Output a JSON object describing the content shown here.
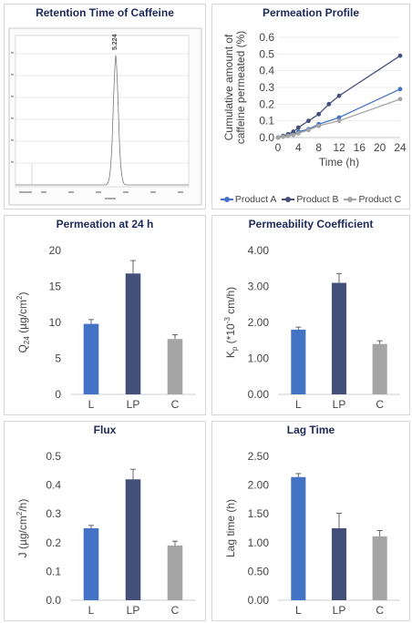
{
  "chromatogram": {
    "title": "Retention Time of Caffeine",
    "peak_label": "5.224",
    "peak_rt": 5.224
  },
  "chart_data": [
    {
      "id": "permeation_profile",
      "type": "line",
      "title": "Permeation Profile",
      "xlabel": "Time (h)",
      "ylabel": "Cumulative amount of caffeine permeated (%)",
      "ylabel_lines": [
        "Cumulative amount of",
        "caffeine permeated (%)"
      ],
      "xlim": [
        0,
        24
      ],
      "ylim": [
        0,
        0.6
      ],
      "xticks": [
        0,
        4,
        8,
        12,
        16,
        20,
        24
      ],
      "yticks": [
        0,
        0.1,
        0.2,
        0.3,
        0.4,
        0.5,
        0.6
      ],
      "ytick_labels": [
        "0.0",
        "0.1",
        "0.2",
        "0.3",
        "0.4",
        "0.5",
        "0.6"
      ],
      "legend_position": "bottom",
      "series": [
        {
          "name": "Product A",
          "color": "#4472c4",
          "x": [
            0,
            1,
            2,
            3,
            4,
            6,
            8,
            12,
            24
          ],
          "y": [
            0,
            0.005,
            0.01,
            0.02,
            0.035,
            0.05,
            0.08,
            0.12,
            0.29
          ]
        },
        {
          "name": "Product B",
          "color": "#44507a",
          "x": [
            0,
            1,
            2,
            3,
            4,
            6,
            8,
            10,
            12,
            24
          ],
          "y": [
            0,
            0.01,
            0.02,
            0.035,
            0.06,
            0.1,
            0.14,
            0.2,
            0.25,
            0.49
          ]
        },
        {
          "name": "Product C",
          "color": "#a5a5a5",
          "x": [
            0,
            1,
            2,
            3,
            4,
            6,
            8,
            12,
            24
          ],
          "y": [
            0,
            0.005,
            0.01,
            0.015,
            0.025,
            0.045,
            0.07,
            0.1,
            0.23
          ]
        }
      ]
    },
    {
      "id": "permeation_24h",
      "type": "bar",
      "title": "Permeation at 24 h",
      "ylabel": "Q24 (µg/cm2)",
      "ylabel_parts": {
        "main": "Q",
        "sub": "24",
        "rest": " (µg/cm",
        "sup": "2",
        "end": ")"
      },
      "categories": [
        "L",
        "LP",
        "C"
      ],
      "values": [
        9.8,
        16.8,
        7.7
      ],
      "errors": [
        0.6,
        1.8,
        0.6
      ],
      "colors": [
        "#4472c4",
        "#44507a",
        "#a5a5a5"
      ],
      "ylim": [
        0,
        20
      ],
      "yticks": [
        0,
        5,
        10,
        15,
        20
      ],
      "ytick_labels": [
        "0",
        "5",
        "10",
        "15",
        "20"
      ]
    },
    {
      "id": "permeability_coefficient",
      "type": "bar",
      "title": "Permeability Coefficient",
      "ylabel": "Kp (*10-3 cm/h)",
      "ylabel_parts": {
        "main": "K",
        "sub": "p",
        "rest": " (*10",
        "sup": "-3",
        "end": " cm/h)"
      },
      "categories": [
        "L",
        "LP",
        "C"
      ],
      "values": [
        1.8,
        3.1,
        1.4
      ],
      "errors": [
        0.07,
        0.26,
        0.09
      ],
      "colors": [
        "#4472c4",
        "#44507a",
        "#a5a5a5"
      ],
      "ylim": [
        0,
        4
      ],
      "yticks": [
        0,
        1,
        2,
        3,
        4
      ],
      "ytick_labels": [
        "0.00",
        "1.00",
        "2.00",
        "3.00",
        "4.00"
      ]
    },
    {
      "id": "flux",
      "type": "bar",
      "title": "Flux",
      "ylabel": "J (µg/cm2/h)",
      "ylabel_parts": {
        "main": "J (µg/cm",
        "sub": "",
        "rest": "",
        "sup": "2",
        "end": "/h)"
      },
      "categories": [
        "L",
        "LP",
        "C"
      ],
      "values": [
        0.25,
        0.42,
        0.19
      ],
      "errors": [
        0.01,
        0.035,
        0.015
      ],
      "colors": [
        "#4472c4",
        "#44507a",
        "#a5a5a5"
      ],
      "ylim": [
        0,
        0.5
      ],
      "yticks": [
        0,
        0.1,
        0.2,
        0.3,
        0.4,
        0.5
      ],
      "ytick_labels": [
        "0.0",
        "0.1",
        "0.2",
        "0.3",
        "0.4",
        "0.5"
      ]
    },
    {
      "id": "lag_time",
      "type": "bar",
      "title": "Lag Time",
      "ylabel": "Lag time (h)",
      "ylabel_parts": {
        "main": "Lag time (h)",
        "sub": "",
        "rest": "",
        "sup": "",
        "end": ""
      },
      "categories": [
        "L",
        "LP",
        "C"
      ],
      "values": [
        2.14,
        1.25,
        1.11
      ],
      "errors": [
        0.06,
        0.26,
        0.1
      ],
      "colors": [
        "#4472c4",
        "#44507a",
        "#a5a5a5"
      ],
      "ylim": [
        0,
        2.5
      ],
      "yticks": [
        0,
        0.5,
        1,
        1.5,
        2,
        2.5
      ],
      "ytick_labels": [
        "0.00",
        "0.50",
        "1.00",
        "1.50",
        "2.00",
        "2.50"
      ]
    }
  ]
}
